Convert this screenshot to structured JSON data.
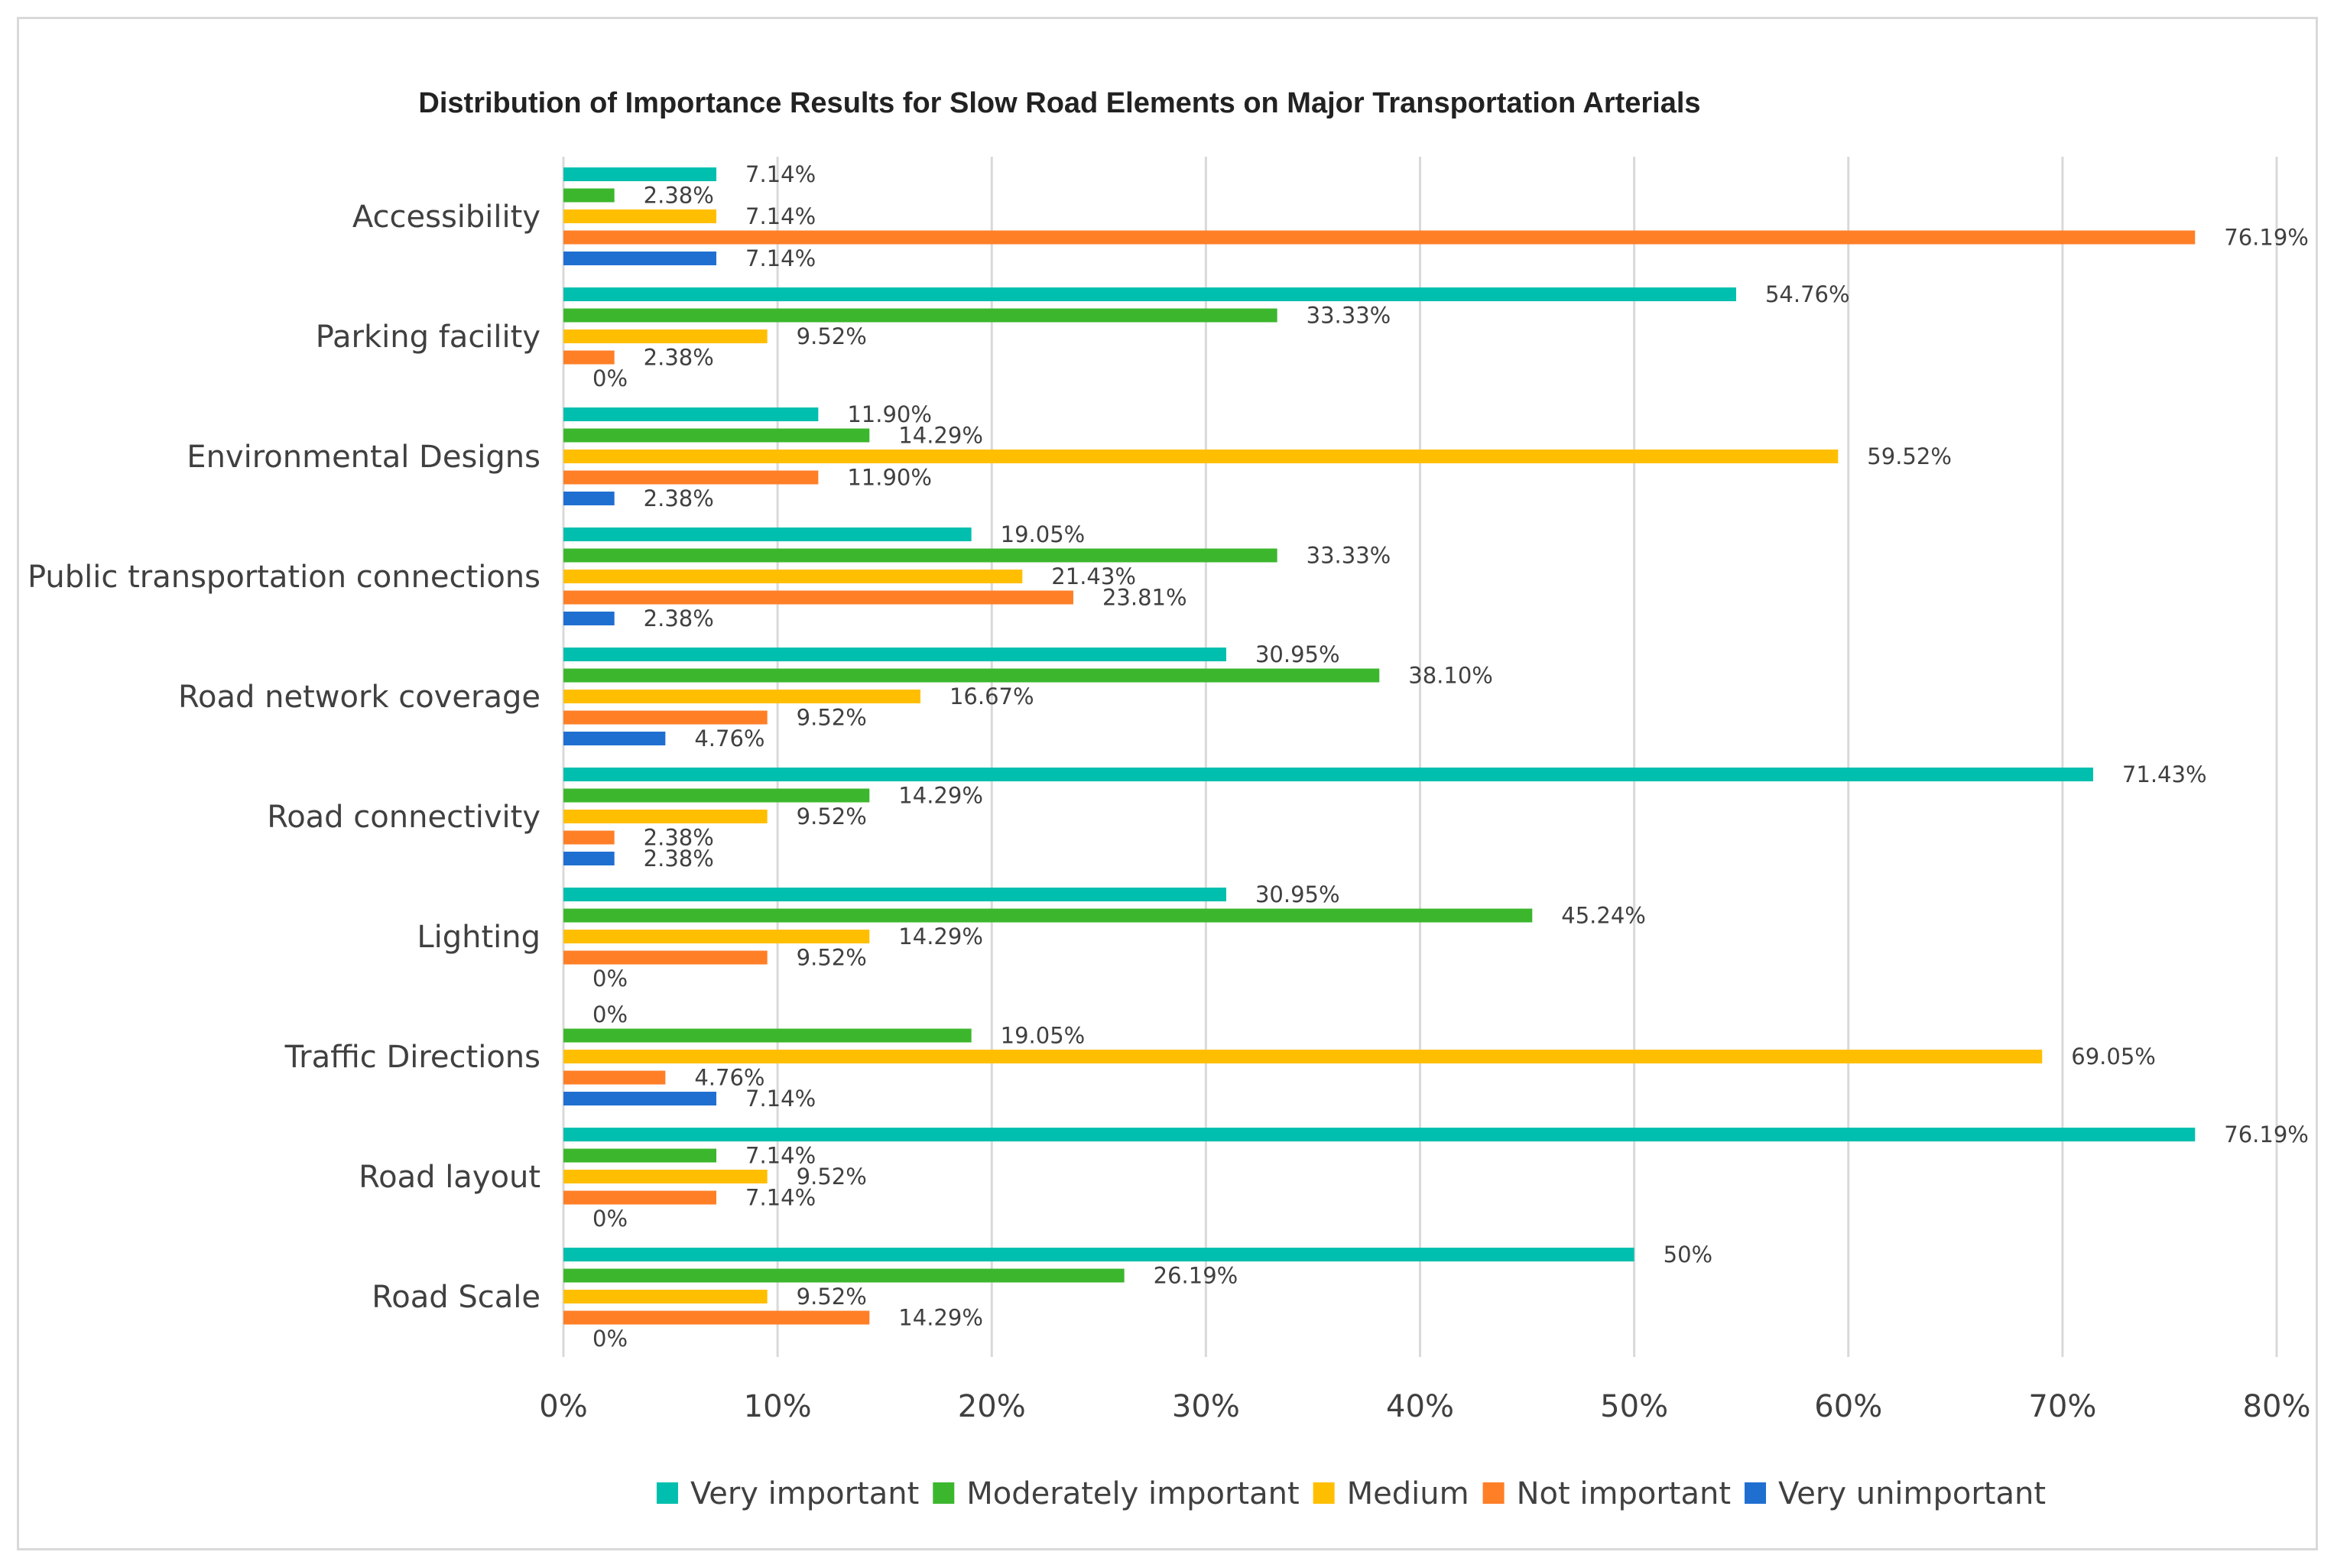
{
  "chart_data": {
    "type": "bar",
    "orientation": "horizontal",
    "title": "Distribution of Importance Results for Slow Road Elements on Major Transportation Arterials",
    "xlabel": "",
    "ylabel": "",
    "xlim": [
      0,
      80
    ],
    "x_ticks": [
      0,
      10,
      20,
      30,
      40,
      50,
      60,
      70,
      80
    ],
    "x_tick_labels": [
      "0%",
      "10%",
      "20%",
      "30%",
      "40%",
      "50%",
      "60%",
      "70%",
      "80%"
    ],
    "grid": true,
    "legend_position": "bottom",
    "categories": [
      "Accessibility",
      "Parking facility",
      "Environmental Designs",
      "Public transportation connections",
      "Road network coverage",
      "Road connectivity",
      "Lighting",
      "Traffic Directions",
      "Road layout",
      "Road Scale"
    ],
    "series": [
      {
        "name": "Very important",
        "color": "#00bfae",
        "values": [
          7.14,
          54.76,
          11.9,
          19.05,
          30.95,
          71.43,
          30.95,
          0,
          76.19,
          50
        ],
        "labels": [
          "7.14%",
          "54.76%",
          "11.90%",
          "19.05%",
          "30.95%",
          "71.43%",
          "30.95%",
          "0%",
          "76.19%",
          "50%"
        ]
      },
      {
        "name": "Moderately important",
        "color": "#3cb72d",
        "values": [
          2.38,
          33.33,
          14.29,
          33.33,
          38.1,
          14.29,
          45.24,
          19.05,
          7.14,
          26.19
        ],
        "labels": [
          "2.38%",
          "33.33%",
          "14.29%",
          "33.33%",
          "38.10%",
          "14.29%",
          "45.24%",
          "19.05%",
          "7.14%",
          "26.19%"
        ]
      },
      {
        "name": "Medium",
        "color": "#ffbf00",
        "values": [
          7.14,
          9.52,
          59.52,
          21.43,
          16.67,
          9.52,
          14.29,
          69.05,
          9.52,
          9.52
        ],
        "labels": [
          "7.14%",
          "9.52%",
          "59.52%",
          "21.43%",
          "16.67%",
          "9.52%",
          "14.29%",
          "69.05%",
          "9.52%",
          "9.52%"
        ]
      },
      {
        "name": "Not important",
        "color": "#ff7f27",
        "values": [
          76.19,
          2.38,
          11.9,
          23.81,
          9.52,
          2.38,
          9.52,
          4.76,
          7.14,
          14.29
        ],
        "labels": [
          "76.19%",
          "2.38%",
          "11.90%",
          "23.81%",
          "9.52%",
          "2.38%",
          "9.52%",
          "4.76%",
          "7.14%",
          "14.29%"
        ]
      },
      {
        "name": "Very unimportant",
        "color": "#1f6fd1",
        "values": [
          7.14,
          0,
          2.38,
          2.38,
          4.76,
          2.38,
          0,
          7.14,
          0,
          0
        ],
        "labels": [
          "7.14%",
          "0%",
          "2.38%",
          "2.38%",
          "4.76%",
          "2.38%",
          "0%",
          "7.14%",
          "0%",
          "0%"
        ]
      }
    ]
  }
}
